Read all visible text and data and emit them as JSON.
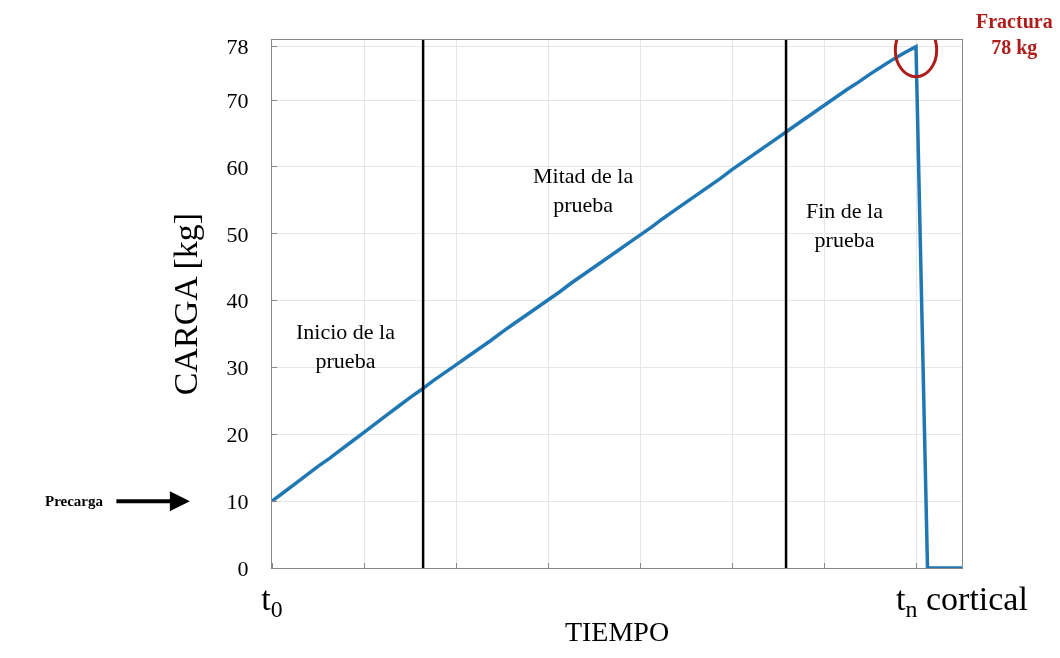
{
  "chart_data": {
    "type": "line",
    "xlabel": "TIEMPO",
    "ylabel": "CARGA [kg]",
    "categories": [
      "t$_{0}$",
      null,
      null,
      null,
      null,
      null,
      null,
      null,
      null,
      null,
      null,
      null,
      null,
      null,
      null,
      null,
      null,
      null,
      null,
      null,
      null,
      null,
      null,
      null,
      null,
      null,
      null,
      null,
      null,
      null,
      null,
      null,
      null,
      null,
      null,
      null,
      null,
      null,
      null,
      null,
      null,
      null,
      null,
      null,
      null,
      null,
      null,
      null,
      null,
      null,
      null,
      null,
      null,
      null,
      null,
      null,
      null,
      null,
      null,
      null,
      "t$_{n}$ cortical"
    ],
    "series": [
      {
        "color": "#1f77b4",
        "values": [
          10,
          11.3,
          12.6,
          13.9,
          15.2,
          16.4,
          17.7,
          19.0,
          20.3,
          21.6,
          22.9,
          24.2,
          25.5,
          26.7,
          28.0,
          29.2,
          30.4,
          31.6,
          32.8,
          34.0,
          35.3,
          36.5,
          37.7,
          38.9,
          40.1,
          41.3,
          42.6,
          43.8,
          45.0,
          46.2,
          47.4,
          48.6,
          49.8,
          51.0,
          52.3,
          53.5,
          54.7,
          55.9,
          57.1,
          58.3,
          59.6,
          60.8,
          62.0,
          63.2,
          64.4,
          65.6,
          66.8,
          68.0,
          69.2,
          70.4,
          71.6,
          72.7,
          73.9,
          75.0,
          76.1,
          77.1,
          78,
          0,
          0,
          0,
          0
        ]
      }
    ],
    "ylim": [
      0,
      79
    ],
    "yticks": [
      0,
      10,
      20,
      30,
      40,
      50,
      60,
      70,
      78
    ],
    "grid": true,
    "legend": false,
    "marker": "none",
    "line_style": "solid",
    "annotations": [
      "Inicio de la\nprueba",
      "Mitad de la\nprueba",
      "Fin de la\nprueba",
      "Fractura\n78 kg",
      "Precarga"
    ]
  }
}
